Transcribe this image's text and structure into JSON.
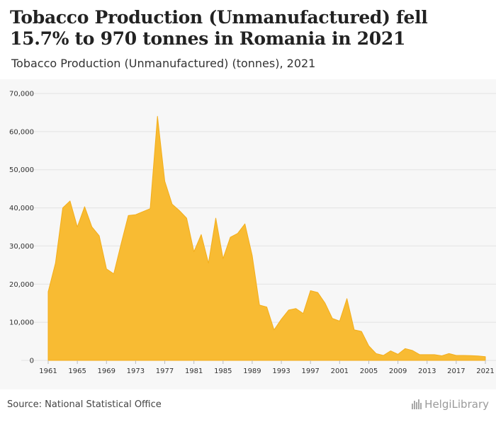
{
  "header": {
    "title": "Tobacco Production (Unmanufactured) fell 15.7% to 970 tonnes in Romania in 2021",
    "subtitle": "Tobacco Production (Unmanufactured) (tonnes), 2021"
  },
  "footer": {
    "source": "Source: National Statistical Office",
    "logo_text": "HelgiLibrary"
  },
  "colors": {
    "area_fill": "#f8bb33",
    "area_stroke": "#f3ae1c",
    "grid": "#e3e3e3",
    "tick_text": "#333333"
  },
  "chart_data": {
    "type": "area",
    "title": "Tobacco Production (Unmanufactured) fell 15.7% to 970 tonnes in Romania in 2021",
    "subtitle": "Tobacco Production (Unmanufactured) (tonnes), 2021",
    "xlabel": "",
    "ylabel": "",
    "ylim": [
      0,
      70000
    ],
    "yticks": [
      0,
      10000,
      20000,
      30000,
      40000,
      50000,
      60000,
      70000
    ],
    "ytick_labels": [
      "0",
      "10,000",
      "20,000",
      "30,000",
      "40,000",
      "50,000",
      "60,000",
      "70,000"
    ],
    "xticks": [
      1961,
      1965,
      1969,
      1973,
      1977,
      1981,
      1985,
      1989,
      1993,
      1997,
      2001,
      2005,
      2009,
      2013,
      2017,
      2021
    ],
    "grid": true,
    "legend": "none",
    "x": [
      1961,
      1962,
      1963,
      1964,
      1965,
      1966,
      1967,
      1968,
      1969,
      1970,
      1971,
      1972,
      1973,
      1974,
      1975,
      1976,
      1977,
      1978,
      1979,
      1980,
      1981,
      1982,
      1983,
      1984,
      1985,
      1986,
      1987,
      1988,
      1989,
      1990,
      1991,
      1992,
      1993,
      1994,
      1995,
      1996,
      1997,
      1998,
      1999,
      2000,
      2001,
      2002,
      2003,
      2004,
      2005,
      2006,
      2007,
      2008,
      2009,
      2010,
      2011,
      2012,
      2013,
      2014,
      2015,
      2016,
      2017,
      2018,
      2019,
      2020,
      2021
    ],
    "series": [
      {
        "values": [
          18000,
          25500,
          40000,
          41800,
          35000,
          40300,
          35000,
          32700,
          24000,
          22700,
          30500,
          38000,
          38200,
          39000,
          39800,
          64000,
          47000,
          41000,
          39300,
          37300,
          28500,
          33000,
          25500,
          37300,
          26700,
          32300,
          33300,
          35800,
          27500,
          14500,
          14000,
          8000,
          10800,
          13200,
          13600,
          12300,
          18300,
          17800,
          15000,
          11000,
          10300,
          16200,
          8000,
          7600,
          3800,
          1800,
          1300,
          2500,
          1600,
          3100,
          2600,
          1500,
          1500,
          1500,
          1200,
          1800,
          1300,
          1300,
          1250,
          1150,
          970
        ]
      }
    ]
  }
}
